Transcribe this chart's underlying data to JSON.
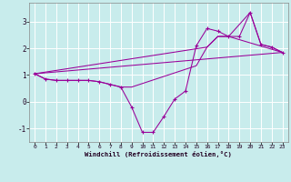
{
  "xlabel": "Windchill (Refroidissement éolien,°C)",
  "xlim": [
    -0.5,
    23.5
  ],
  "ylim": [
    -1.5,
    3.7
  ],
  "xticks": [
    0,
    1,
    2,
    3,
    4,
    5,
    6,
    7,
    8,
    9,
    10,
    11,
    12,
    13,
    14,
    15,
    16,
    17,
    18,
    19,
    20,
    21,
    22,
    23
  ],
  "yticks": [
    -1,
    0,
    1,
    2,
    3
  ],
  "bg_color": "#c8ecec",
  "line_color": "#990099",
  "grid_color": "#ffffff",
  "line1_x": [
    0,
    23
  ],
  "line1_y": [
    1.05,
    1.85
  ],
  "line2_x": [
    0,
    1,
    2,
    3,
    4,
    5,
    6,
    7,
    8,
    9,
    15,
    16,
    17,
    18,
    23
  ],
  "line2_y": [
    1.05,
    0.85,
    0.8,
    0.8,
    0.8,
    0.8,
    0.75,
    0.65,
    0.55,
    0.55,
    1.35,
    2.05,
    2.45,
    2.45,
    1.85
  ],
  "line3_x": [
    0,
    16,
    17,
    18,
    20,
    21,
    22,
    23
  ],
  "line3_y": [
    1.05,
    2.05,
    2.45,
    2.45,
    3.35,
    2.15,
    2.05,
    1.85
  ],
  "main_x": [
    0,
    1,
    2,
    3,
    4,
    5,
    6,
    7,
    8,
    9,
    10,
    11,
    12,
    13,
    14,
    15,
    16,
    17,
    18,
    19,
    20,
    21,
    22,
    23
  ],
  "main_y": [
    1.05,
    0.85,
    0.8,
    0.8,
    0.8,
    0.8,
    0.75,
    0.65,
    0.55,
    -0.2,
    -1.15,
    -1.15,
    -0.55,
    0.1,
    0.4,
    2.1,
    2.75,
    2.65,
    2.45,
    2.45,
    3.35,
    2.15,
    2.05,
    1.85
  ]
}
